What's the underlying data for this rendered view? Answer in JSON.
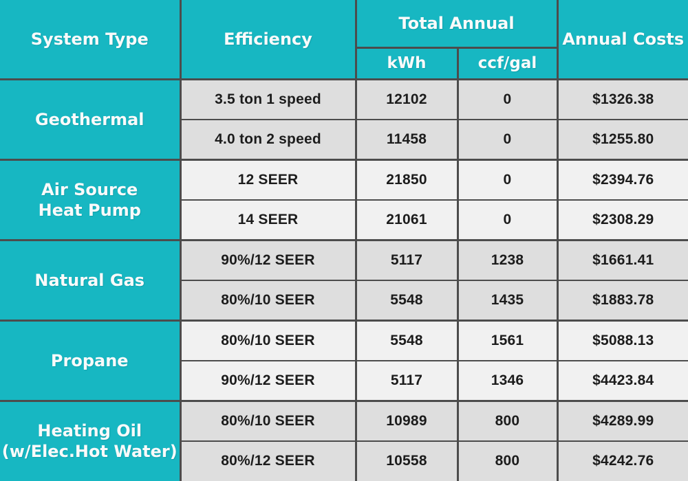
{
  "colors": {
    "accent_teal": "#17b7c2",
    "border": "#4c4c4c",
    "row_dark": "#dedede",
    "row_light": "#f1f1f1",
    "header_text": "#fafafa",
    "data_text": "#1c1c1c"
  },
  "header": {
    "system_type": "System Type",
    "efficiency": "Efficiency",
    "total_annual": "Total Annual",
    "kwh": "kWh",
    "ccf_gal": "ccf/gal",
    "annual_costs": "Annual Costs"
  },
  "groups": [
    {
      "system": "Geothermal",
      "shade": "dark",
      "rows": [
        {
          "efficiency": "3.5 ton 1 speed",
          "kwh": "12102",
          "ccf_gal": "0",
          "annual_cost": "$1326.38"
        },
        {
          "efficiency": "4.0 ton 2 speed",
          "kwh": "11458",
          "ccf_gal": "0",
          "annual_cost": "$1255.80"
        }
      ]
    },
    {
      "system": "Air Source\nHeat Pump",
      "shade": "light",
      "rows": [
        {
          "efficiency": "12 SEER",
          "kwh": "21850",
          "ccf_gal": "0",
          "annual_cost": "$2394.76"
        },
        {
          "efficiency": "14 SEER",
          "kwh": "21061",
          "ccf_gal": "0",
          "annual_cost": "$2308.29"
        }
      ]
    },
    {
      "system": "Natural Gas",
      "shade": "dark",
      "rows": [
        {
          "efficiency": "90%/12 SEER",
          "kwh": "5117",
          "ccf_gal": "1238",
          "annual_cost": "$1661.41"
        },
        {
          "efficiency": "80%/10 SEER",
          "kwh": "5548",
          "ccf_gal": "1435",
          "annual_cost": "$1883.78"
        }
      ]
    },
    {
      "system": "Propane",
      "shade": "light",
      "rows": [
        {
          "efficiency": "80%/10 SEER",
          "kwh": "5548",
          "ccf_gal": "1561",
          "annual_cost": "$5088.13"
        },
        {
          "efficiency": "90%/12 SEER",
          "kwh": "5117",
          "ccf_gal": "1346",
          "annual_cost": "$4423.84"
        }
      ]
    },
    {
      "system": "Heating Oil\n(w/Elec.Hot Water)",
      "shade": "dark",
      "rows": [
        {
          "efficiency": "80%/10 SEER",
          "kwh": "10989",
          "ccf_gal": "800",
          "annual_cost": "$4289.99"
        },
        {
          "efficiency": "80%/12 SEER",
          "kwh": "10558",
          "ccf_gal": "800",
          "annual_cost": "$4242.76"
        }
      ]
    }
  ],
  "chart_data": {
    "type": "table",
    "title": "",
    "columns": [
      "System Type",
      "Efficiency",
      "Total Annual kWh",
      "Total Annual ccf/gal",
      "Annual Costs"
    ],
    "rows": [
      [
        "Geothermal",
        "3.5 ton 1 speed",
        12102,
        0,
        "$1326.38"
      ],
      [
        "Geothermal",
        "4.0 ton 2 speed",
        11458,
        0,
        "$1255.80"
      ],
      [
        "Air Source Heat Pump",
        "12 SEER",
        21850,
        0,
        "$2394.76"
      ],
      [
        "Air Source Heat Pump",
        "14 SEER",
        21061,
        0,
        "$2308.29"
      ],
      [
        "Natural Gas",
        "90%/12 SEER",
        5117,
        1238,
        "$1661.41"
      ],
      [
        "Natural Gas",
        "80%/10 SEER",
        5548,
        1435,
        "$1883.78"
      ],
      [
        "Propane",
        "80%/10 SEER",
        5548,
        1561,
        "$5088.13"
      ],
      [
        "Propane",
        "90%/12 SEER",
        5117,
        1346,
        "$4423.84"
      ],
      [
        "Heating Oil (w/Elec.Hot Water)",
        "80%/10 SEER",
        10989,
        800,
        "$4289.99"
      ],
      [
        "Heating Oil (w/Elec.Hot Water)",
        "80%/12 SEER",
        10558,
        800,
        "$4242.76"
      ]
    ]
  }
}
